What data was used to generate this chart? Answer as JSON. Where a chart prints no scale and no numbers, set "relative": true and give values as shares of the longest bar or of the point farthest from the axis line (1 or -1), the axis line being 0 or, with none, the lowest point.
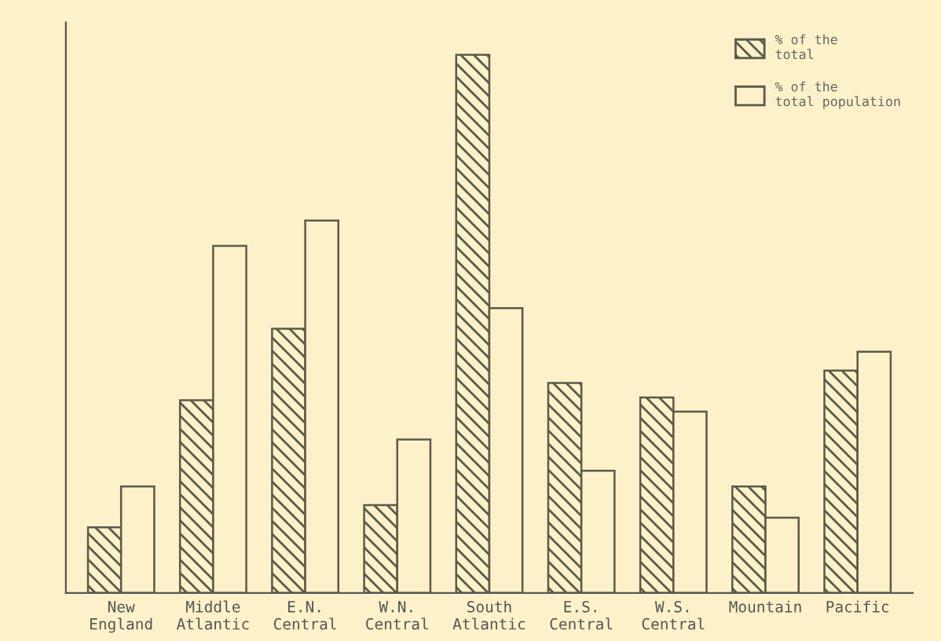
{
  "chart_data": {
    "type": "bar",
    "relative": true,
    "categories": [
      "New\nEngland",
      "Middle\nAtlantic",
      "E.N.\nCentral",
      "W.N.\nCentral",
      "South\nAtlantic",
      "E.S.\nCentral",
      "W.S.\nCentral",
      "Mountain",
      "Pacific"
    ],
    "series": [
      {
        "name": "% of the\ntotal",
        "color": "#5a5a4a",
        "values": [
          0.122,
          0.358,
          0.491,
          0.163,
          1,
          0.39,
          0.363,
          0.198,
          0.413
        ]
      },
      {
        "name": "% of the\ntotal population",
        "color": "#5a5a4a",
        "values": [
          0.198,
          0.645,
          0.692,
          0.285,
          0.529,
          0.227,
          0.337,
          0.14,
          0.448
        ]
      }
    ],
    "legend": "top right",
    "grid": false
  }
}
